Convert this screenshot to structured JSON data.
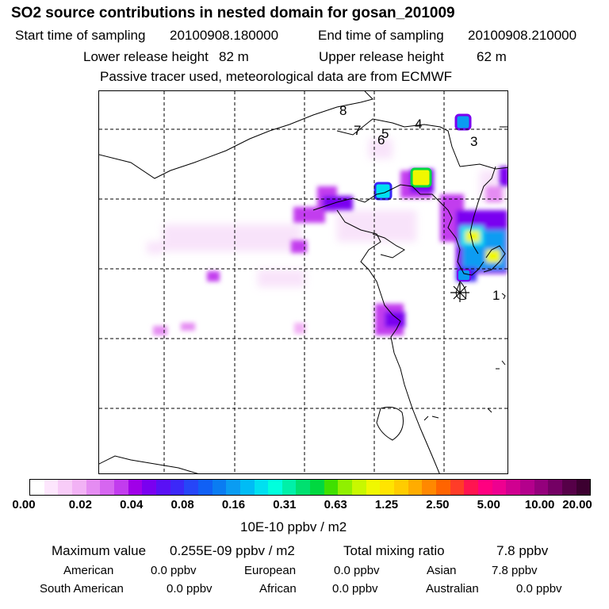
{
  "title": "SO2 source contributions in nested domain for gosan_201009",
  "header": {
    "start_label": "Start time of sampling",
    "start_value": "20100908.180000",
    "end_label": "End time of sampling",
    "end_value": "20100908.210000",
    "lower_label": "Lower release height",
    "lower_value": "82 m",
    "upper_label": "Upper release height",
    "upper_value": "62 m",
    "note": "Passive tracer used, meteorological data are from ECMWF"
  },
  "map": {
    "markers": [
      {
        "label": "1"
      },
      {
        "label": "3"
      },
      {
        "label": "4"
      },
      {
        "label": "5"
      },
      {
        "label": "6"
      },
      {
        "label": "7"
      },
      {
        "label": "8"
      }
    ],
    "receptor_icon": "asterisk-icon"
  },
  "colorbar": {
    "ticks": [
      "0.00",
      "0.02",
      "0.04",
      "0.08",
      "0.16",
      "0.31",
      "0.63",
      "1.25",
      "2.50",
      "5.00",
      "10.00",
      "20.00"
    ],
    "colors": [
      "#ffffff",
      "#fde6fd",
      "#f8ccf8",
      "#f2b2f5",
      "#e58cf2",
      "#d666f0",
      "#c23cee",
      "#a000e8",
      "#7a00f0",
      "#5a10f5",
      "#3c28f8",
      "#2646f8",
      "#1060f5",
      "#0a7cf2",
      "#0a9cf2",
      "#00bcf5",
      "#00e0f0",
      "#00ffdd",
      "#00f0a8",
      "#00e070",
      "#00d840",
      "#40e000",
      "#90f000",
      "#c8f800",
      "#f0f800",
      "#ffe400",
      "#ffcc00",
      "#ffac00",
      "#ff8800",
      "#ff6400",
      "#ff3c28",
      "#ff1450",
      "#ff0080",
      "#ee0090",
      "#d00090",
      "#b4008c",
      "#94007c",
      "#740064",
      "#560048",
      "#3c0030"
    ],
    "unit": "10E-10 ppbv / m2"
  },
  "stats": {
    "max_label": "Maximum value",
    "max_value": "0.255E-09 ppbv / m2",
    "total_label": "Total mixing ratio",
    "total_value": "7.8 ppbv",
    "regions": [
      {
        "name": "American",
        "value": "0.0 ppbv"
      },
      {
        "name": "European",
        "value": "0.0 ppbv"
      },
      {
        "name": "Asian",
        "value": "7.8 ppbv"
      },
      {
        "name": "South American",
        "value": "0.0 ppbv"
      },
      {
        "name": "African",
        "value": "0.0 ppbv"
      },
      {
        "name": "Australian",
        "value": "0.0 ppbv"
      }
    ]
  }
}
